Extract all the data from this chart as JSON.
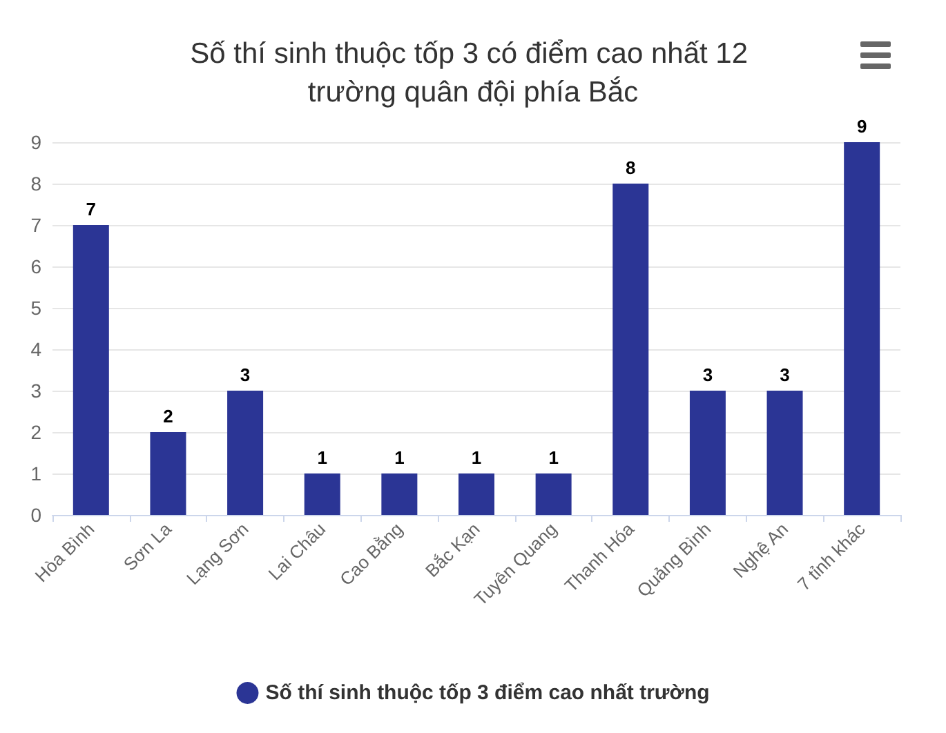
{
  "chart_data": {
    "type": "bar",
    "title": "Số thí sinh thuộc tốp 3 có điểm cao nhất 12 trường quân đội phía Bắc",
    "categories": [
      "Hòa Bình",
      "Sơn La",
      "Lạng Sơn",
      "Lai Châu",
      "Cao Bằng",
      "Bắc Kạn",
      "Tuyên Quang",
      "Thanh Hóa",
      "Quảng Bình",
      "Nghệ An",
      "7 tỉnh khác"
    ],
    "series": [
      {
        "name": "Số thí sinh thuộc tốp 3 điểm cao nhất trường",
        "color": "#2b3595",
        "values": [
          7,
          2,
          3,
          1,
          1,
          1,
          1,
          8,
          3,
          3,
          9
        ]
      }
    ],
    "ylim": [
      0,
      9
    ],
    "yticks": [
      0,
      1,
      2,
      3,
      4,
      5,
      6,
      7,
      8,
      9
    ],
    "grid": "y",
    "legend": "bottom",
    "data_labels": true
  }
}
